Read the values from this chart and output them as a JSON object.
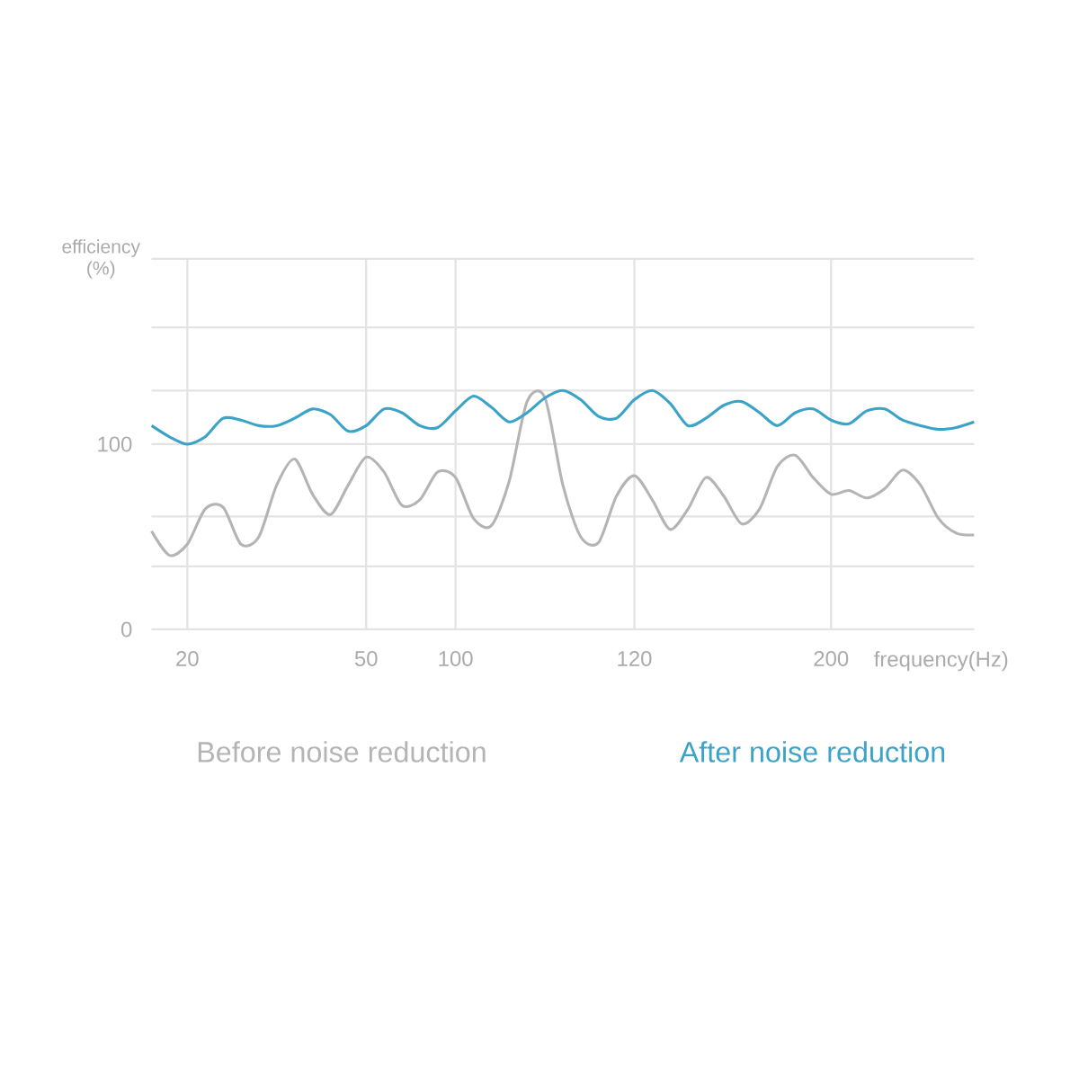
{
  "chart_data": {
    "type": "line",
    "xlabel": "frequency(Hz)",
    "ylabel": "efficiency (%)",
    "categories": [
      null,
      null,
      "20",
      null,
      null,
      null,
      null,
      null,
      null,
      null,
      null,
      null,
      "50",
      null,
      null,
      null,
      null,
      "100",
      null,
      null,
      null,
      null,
      null,
      null,
      null,
      null,
      null,
      "120",
      null,
      null,
      null,
      null,
      null,
      null,
      null,
      null,
      null,
      null,
      "200",
      null,
      null,
      null,
      null,
      null,
      null,
      null,
      null
    ],
    "series": [
      {
        "name": "Before noise reduction",
        "color": "#b4b4b4",
        "values": [
          53,
          40,
          46,
          65,
          66,
          46,
          50,
          78,
          92,
          73,
          62,
          78,
          93,
          85,
          67,
          70,
          85,
          82,
          60,
          56,
          80,
          123,
          125,
          78,
          50,
          47,
          72,
          83,
          70,
          54,
          65,
          82,
          72,
          57,
          65,
          88,
          94,
          82,
          73,
          75,
          71,
          76,
          86,
          78,
          60,
          52,
          51
        ]
      },
      {
        "name": "After noise reduction",
        "color": "#3ba3c8",
        "values": [
          110,
          104,
          100,
          104,
          114,
          113,
          110,
          110,
          114,
          119,
          116,
          107,
          110,
          119,
          117,
          110,
          109,
          118,
          126,
          120,
          112,
          117,
          125,
          129,
          124,
          115,
          114,
          124,
          129,
          122,
          110,
          114,
          121,
          123,
          117,
          110,
          117,
          119,
          113,
          111,
          118,
          119,
          113,
          110,
          108,
          109,
          112
        ]
      }
    ],
    "ylim": [
      0,
      200
    ],
    "yticks": [
      0,
      {
        "value": 34,
        "label": null
      },
      {
        "value": 61,
        "label": null
      },
      100,
      {
        "value": 129,
        "label": null
      },
      {
        "value": 163,
        "label": null
      },
      {
        "value": 200,
        "label": null
      }
    ],
    "grid": true,
    "legend": "bottom",
    "marker": "none"
  }
}
